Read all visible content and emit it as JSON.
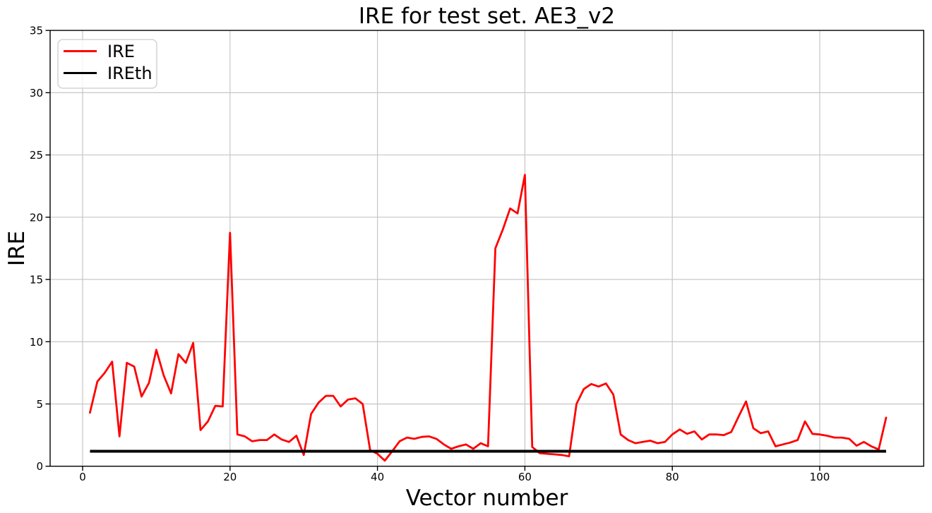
{
  "window": {
    "kind": "matplotlib-figure",
    "background": "#ffffff"
  },
  "chart_data": {
    "type": "line",
    "title": "IRE for test set. AE3_v2",
    "xlabel": "Vector number",
    "ylabel": "IRE",
    "xlim": [
      -4.4,
      114.1
    ],
    "ylim": [
      0,
      35
    ],
    "x_ticks": [
      0,
      20,
      40,
      60,
      80,
      100
    ],
    "y_ticks": [
      0,
      5,
      10,
      15,
      20,
      25,
      30,
      35
    ],
    "grid": true,
    "grid_color": "#c6c6c6",
    "legend": {
      "position": "upper left",
      "entries": [
        "IRE",
        "IREth"
      ],
      "colors": [
        "#ff0000",
        "#000000"
      ]
    },
    "x_start": 1,
    "x_step": 1,
    "series": [
      {
        "name": "IRE",
        "color": "#ff0000",
        "style": "line",
        "values": [
          4.3,
          6.8,
          7.5,
          8.4,
          2.4,
          8.3,
          8.0,
          5.6,
          6.7,
          9.35,
          7.3,
          5.85,
          9.0,
          8.3,
          9.9,
          2.9,
          3.6,
          4.85,
          4.8,
          18.75,
          2.55,
          2.4,
          2.0,
          2.1,
          2.1,
          2.55,
          2.15,
          1.95,
          2.45,
          0.9,
          4.2,
          5.1,
          5.65,
          5.65,
          4.8,
          5.35,
          5.45,
          5.0,
          1.3,
          1.0,
          0.45,
          1.2,
          2.0,
          2.3,
          2.2,
          2.35,
          2.4,
          2.2,
          1.75,
          1.4,
          1.6,
          1.75,
          1.4,
          1.85,
          1.6,
          17.5,
          19.0,
          20.7,
          20.3,
          23.4,
          1.55,
          1.05,
          1.0,
          0.95,
          0.9,
          0.8,
          5.0,
          6.2,
          6.6,
          6.4,
          6.65,
          5.75,
          2.55,
          2.1,
          1.85,
          1.95,
          2.05,
          1.85,
          1.95,
          2.55,
          2.95,
          2.6,
          2.8,
          2.15,
          2.55,
          2.55,
          2.5,
          2.75,
          4.0,
          5.2,
          3.05,
          2.65,
          2.8,
          1.6,
          1.75,
          1.9,
          2.1,
          3.6,
          2.6,
          2.55,
          2.45,
          2.3,
          2.3,
          2.2,
          1.65,
          1.95,
          1.6,
          1.35,
          3.9
        ]
      },
      {
        "name": "IREth",
        "color": "#000000",
        "style": "hline",
        "value": 1.2,
        "x_range": [
          1,
          109
        ]
      }
    ]
  }
}
